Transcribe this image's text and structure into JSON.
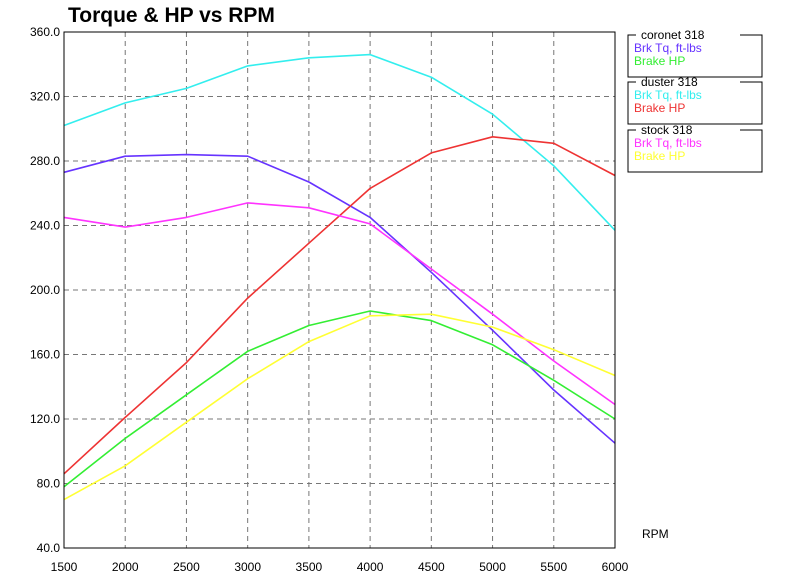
{
  "chart_data": {
    "type": "line",
    "title": "Torque & HP vs RPM",
    "xlabel": "RPM",
    "ylabel": "",
    "x": [
      1500,
      2000,
      2500,
      3000,
      3500,
      4000,
      4500,
      5000,
      5500,
      6000
    ],
    "x_ticks": [
      "1500",
      "2000",
      "2500",
      "3000",
      "3500",
      "4000",
      "4500",
      "5000",
      "5500",
      "6000"
    ],
    "y_ticks": [
      "40.0",
      "80.0",
      "120.0",
      "160.0",
      "200.0",
      "240.0",
      "280.0",
      "320.0",
      "360.0"
    ],
    "xlim": [
      1500,
      6000
    ],
    "ylim": [
      40,
      360
    ],
    "grid": true,
    "legend_position": "right",
    "groups": [
      {
        "title": "coronet 318",
        "series": [
          {
            "name": "Brk Tq, ft-lbs",
            "color": "#6633ff",
            "values": [
              273,
              283,
              284,
              283,
              267,
              245,
              211,
              175,
              138,
              105
            ]
          },
          {
            "name": "Brake HP",
            "color": "#33ee33",
            "values": [
              78,
              108,
              135,
              162,
              178,
              187,
              181,
              166,
              144,
              120
            ]
          }
        ]
      },
      {
        "title": "duster 318",
        "series": [
          {
            "name": "Brk Tq, ft-lbs",
            "color": "#33eeee",
            "values": [
              302,
              316,
              325,
              339,
              344,
              346,
              332,
              309,
              277,
              237
            ]
          },
          {
            "name": "Brake HP",
            "color": "#ee3333",
            "values": [
              86,
              121,
              155,
              195,
              229,
              263,
              285,
              295,
              291,
              271
            ]
          }
        ]
      },
      {
        "title": "stock 318",
        "series": [
          {
            "name": "Brk Tq, ft-lbs",
            "color": "#ff33ff",
            "values": [
              245,
              239,
              245,
              254,
              251,
              241,
              213,
              185,
              156,
              129
            ]
          },
          {
            "name": "Brake HP",
            "color": "#ffff33",
            "values": [
              70,
              91,
              118,
              145,
              168,
              184,
              185,
              177,
              163,
              147
            ]
          }
        ]
      }
    ]
  }
}
